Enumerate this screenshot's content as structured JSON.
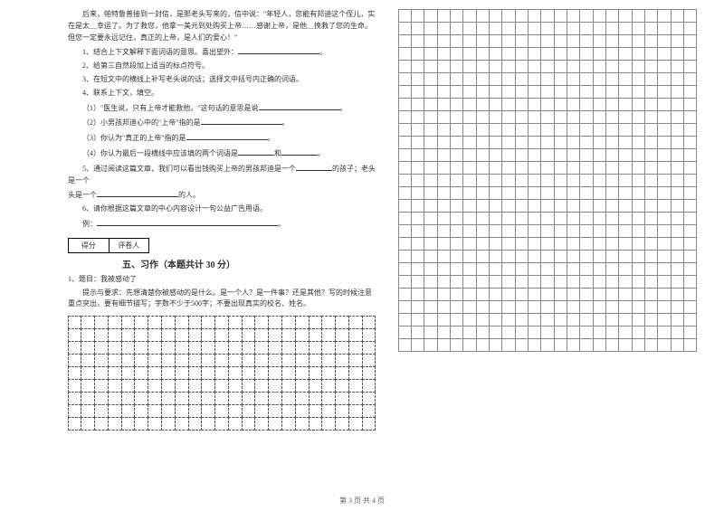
{
  "passage": {
    "p1": "后来，帕特鲁普接到一封信，是那老头写来的，信中说：\"年轻人，您能有邦迪这个侄儿，实在是太＿幸运了。为了救您，他拿一美元到处购买上帝……感谢上帝，是他＿挽救了您的生命。但您一定要永远记住，真正的上帝，是人们的爱心！\""
  },
  "questions": {
    "q1": "1、结合上下文解释下面词语的意思。喜出望外：",
    "q2": "2、给第三自然段加上适当的标点符号。",
    "q3": "3、在短文中的横线上补写老头说的话；选择文中括号内正确的词语。",
    "q4": "4、联系上下文，填空。",
    "q4_1": "（1）\"医生说，只有上帝才能救他。\"这句话的意思是说",
    "q4_2": "（2）小男孩邦迪心中的\"上帝\"指的是",
    "q4_3": "（3）你认为\"真正的上帝\"指的是",
    "q4_4": "（4）你认为最后一段横线中应该填的两个词语是",
    "q5a": "5、通过阅读这篇文章，我们可以看出钱购买上帝的男孩邦迪是一个",
    "q5b": "的孩子；老头是一个",
    "q5c": "的人。",
    "q6": "6、请你根据这篇文章的中心内容设计一句公益广告用语。",
    "q6_eg": "例：",
    "period": "。"
  },
  "scorebox": {
    "left": "得分",
    "right": "评卷人"
  },
  "section5": {
    "title": "五、习作（本题共计 30 分）",
    "item_title": "1、题目：我被感动了",
    "prompt": "提示与要求：先想清楚你被感动的是什么。是一个人？是一件事？还是其他？写的时候注意重点突出，要有细节描写；字数不少于500字；不要出现真实的校名、姓名。"
  },
  "footer": "第 3 页 共 4 页",
  "grids": {
    "top_right": {
      "rows": 27,
      "cols": 23
    },
    "bottom_left": {
      "rows": 9,
      "cols": 23
    }
  }
}
